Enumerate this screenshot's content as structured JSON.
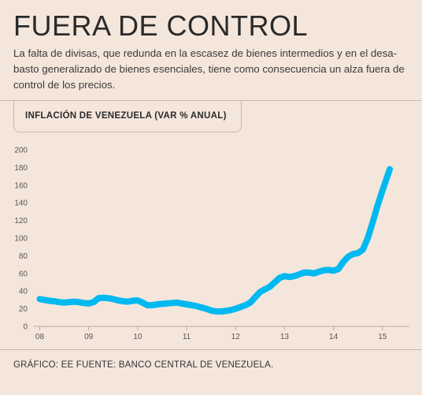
{
  "header": {
    "title": "FUERA DE CONTROL",
    "description": "La falta de divisas, que redunda en la escasez de bienes intermedios y en el desa-basto generalizado de bienes esenciales, tiene como consecuencia un alza fuera de control de los precios."
  },
  "chart_data": {
    "type": "line",
    "title": "INFLACIÓN DE VENEZUELA (VAR % ANUAL)",
    "xlabel": "",
    "ylabel": "",
    "ylim": [
      0,
      200
    ],
    "yticks": [
      0,
      20,
      40,
      60,
      80,
      100,
      120,
      140,
      160,
      180,
      200
    ],
    "xticks": [
      "08",
      "09",
      "10",
      "11",
      "12",
      "13",
      "14",
      "15"
    ],
    "xtick_values": [
      2008,
      2009,
      2010,
      2011,
      2012,
      2013,
      2014,
      2015
    ],
    "xlim": [
      2007.88,
      2015.55
    ],
    "grid": false,
    "line_color": "#00b9f1",
    "series": [
      {
        "x": [
          2008.0,
          2008.1,
          2008.2,
          2008.3,
          2008.4,
          2008.5,
          2008.6,
          2008.7,
          2008.8,
          2008.9,
          2009.0,
          2009.1,
          2009.2,
          2009.3,
          2009.4,
          2009.5,
          2009.6,
          2009.7,
          2009.8,
          2009.9,
          2010.0,
          2010.1,
          2010.2,
          2010.3,
          2010.4,
          2010.5,
          2010.6,
          2010.7,
          2010.8,
          2010.9,
          2011.0,
          2011.1,
          2011.2,
          2011.3,
          2011.4,
          2011.5,
          2011.6,
          2011.7,
          2011.8,
          2011.9,
          2012.0,
          2012.1,
          2012.2,
          2012.3,
          2012.4,
          2012.5,
          2012.6,
          2012.7,
          2012.8,
          2012.9,
          2013.0,
          2013.1,
          2013.2,
          2013.3,
          2013.4,
          2013.5,
          2013.6,
          2013.7,
          2013.8,
          2013.9,
          2014.0,
          2014.1,
          2014.2,
          2014.3,
          2014.4,
          2014.5,
          2014.6,
          2014.7,
          2014.8,
          2014.9,
          2015.0,
          2015.1,
          2015.15
        ],
        "values": [
          31,
          30,
          29,
          28.5,
          27.5,
          27,
          27.5,
          28,
          27.5,
          26.5,
          26,
          27.5,
          32,
          32.5,
          32,
          31,
          29.5,
          28.5,
          28,
          29,
          29.5,
          27,
          24,
          24,
          25,
          25.5,
          26,
          26.5,
          27,
          26,
          25,
          24,
          23,
          21.5,
          20,
          18,
          17,
          17,
          17.5,
          18.5,
          20,
          22,
          24,
          27,
          33,
          39,
          42,
          45,
          50,
          55,
          57,
          56,
          57,
          59,
          61,
          61,
          60,
          62,
          63.5,
          64,
          63,
          65,
          73,
          79,
          82,
          83,
          87,
          100,
          118,
          137,
          154,
          170,
          178
        ]
      }
    ]
  },
  "footer": {
    "source": "GRÁFICO: EE FUENTE: BANCO CENTRAL DE VENEZUELA."
  }
}
